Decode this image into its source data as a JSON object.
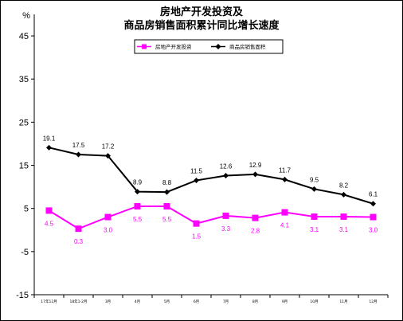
{
  "chart_data": {
    "type": "line",
    "title_line1": "房地产开发投资及",
    "title_line2": "商品房销售面积累计同比增长速度",
    "ylabel": "%",
    "ylim": [
      -15,
      50
    ],
    "yticks": [
      -15,
      -5,
      5,
      15,
      25,
      35,
      45
    ],
    "categories": [
      "17年12月",
      "18年1-2月",
      "3月",
      "4月",
      "5月",
      "6月",
      "7月",
      "8月",
      "9月",
      "10月",
      "11月",
      "12月"
    ],
    "series": [
      {
        "name": "房地产开发投资",
        "color": "#ff00ff",
        "marker": "square",
        "values": [
          4.5,
          0.3,
          3.0,
          5.5,
          5.5,
          1.5,
          3.3,
          2.8,
          4.1,
          3.1,
          3.1,
          3.0
        ],
        "labels": [
          "4.5",
          "0.3",
          "3.0",
          "5.5",
          "5.5",
          "1.5",
          "3.3",
          "2.8",
          "4.1",
          "3.1",
          "3.1",
          "3.0"
        ]
      },
      {
        "name": "商品房销售面积",
        "color": "#000000",
        "marker": "diamond",
        "values": [
          19.1,
          17.5,
          17.2,
          8.9,
          8.8,
          11.5,
          12.6,
          12.9,
          11.7,
          9.5,
          8.2,
          6.1
        ],
        "labels": [
          "19.1",
          "17.5",
          "17.2",
          "8.9",
          "8.8",
          "11.5",
          "12.6",
          "12.9",
          "11.7",
          "9.5",
          "8.2",
          "6.1"
        ]
      }
    ],
    "legend_position": "top",
    "grid": false
  }
}
